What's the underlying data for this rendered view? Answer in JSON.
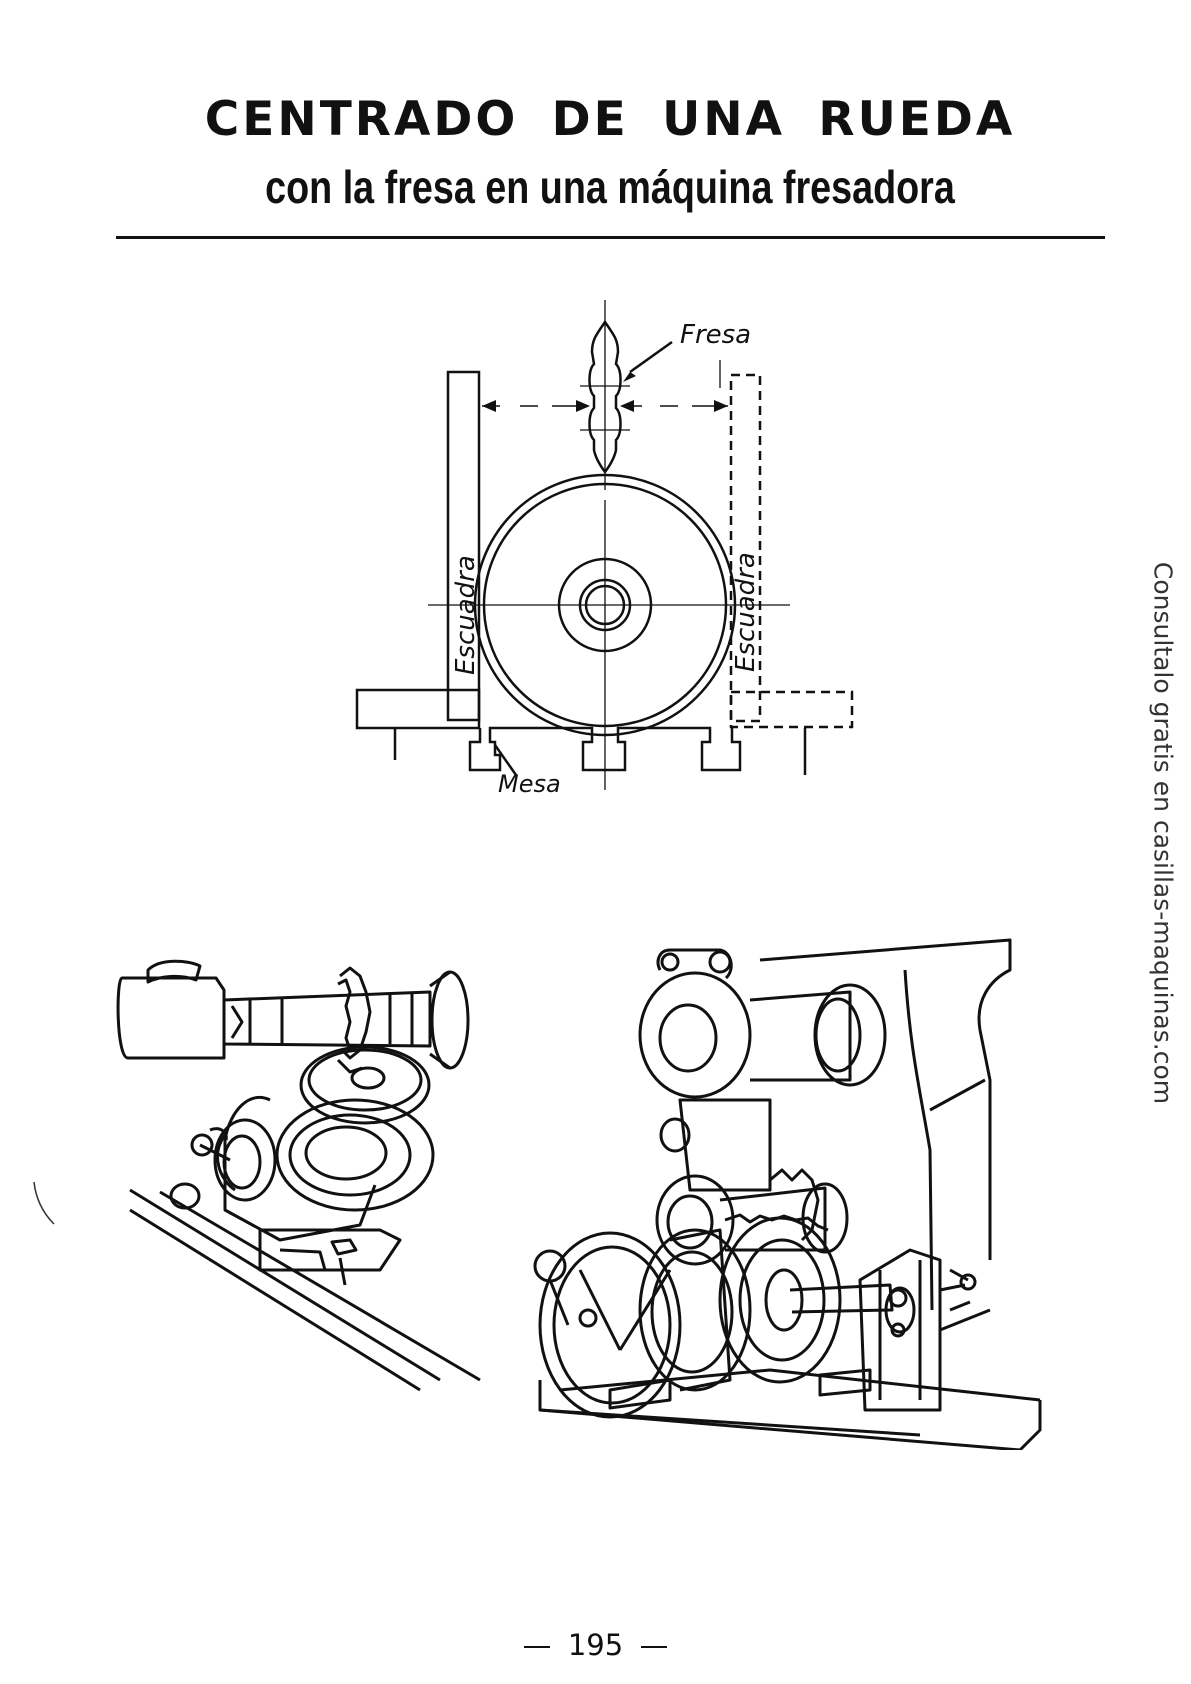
{
  "header": {
    "title": "CENTRADO DE UNA RUEDA",
    "subtitle": "con la fresa en una máquina fresadora"
  },
  "diagram": {
    "labels": {
      "cutter": "Fresa",
      "square_left": "Escuadra",
      "square_right": "Escuadra",
      "table": "Mesa"
    }
  },
  "side_note": "Consultalo gratis en casillas-maquinas.com",
  "footer": {
    "page_number": "195"
  }
}
